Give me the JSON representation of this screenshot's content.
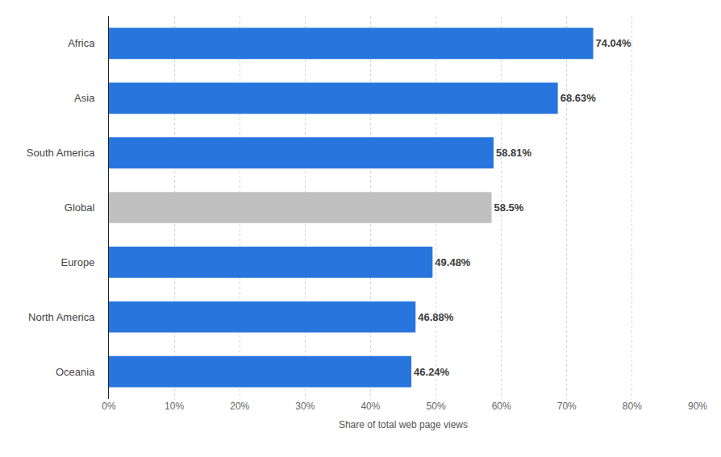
{
  "chart_data": {
    "type": "bar",
    "orientation": "horizontal",
    "categories": [
      "Africa",
      "Asia",
      "South America",
      "Global",
      "Europe",
      "North America",
      "Oceania"
    ],
    "values": [
      74.04,
      68.63,
      58.81,
      58.5,
      49.48,
      46.88,
      46.24
    ],
    "value_labels": [
      "74.04%",
      "68.63%",
      "58.81%",
      "58.5%",
      "49.48%",
      "46.88%",
      "46.24%"
    ],
    "colors": [
      "#2876dd",
      "#2876dd",
      "#2876dd",
      "#c0c0c0",
      "#2876dd",
      "#2876dd",
      "#2876dd"
    ],
    "xlabel": "Share of total web page views",
    "xlim": [
      0,
      90
    ],
    "xticks": [
      {
        "value": 0,
        "label": "0%"
      },
      {
        "value": 10,
        "label": "10%"
      },
      {
        "value": 20,
        "label": "20%"
      },
      {
        "value": 30,
        "label": "30%"
      },
      {
        "value": 40,
        "label": "40%"
      },
      {
        "value": 50,
        "label": "50%"
      },
      {
        "value": 60,
        "label": "60%"
      },
      {
        "value": 70,
        "label": "70%"
      },
      {
        "value": 80,
        "label": "80%"
      },
      {
        "value": 90,
        "label": "90%"
      }
    ],
    "grid": true,
    "data_labels": true
  }
}
